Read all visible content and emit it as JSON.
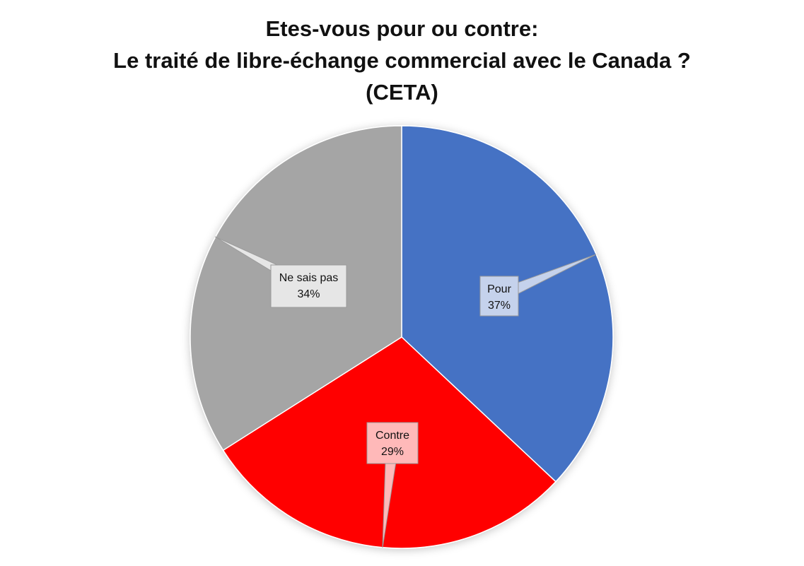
{
  "chart_data": {
    "type": "pie",
    "title": [
      "Etes-vous pour ou contre:",
      "Le traité de libre-échange commercial avec le Canada ?",
      "(CETA)"
    ],
    "slices": [
      {
        "name": "Pour",
        "value": 37,
        "value_label": "37%",
        "color": "#4472C4",
        "label_fill": "#C5D2EC"
      },
      {
        "name": "Contre",
        "value": 29,
        "value_label": "29%",
        "color": "#FF0000",
        "label_fill": "#FFB9B9"
      },
      {
        "name": "Ne sais pas",
        "value": 34,
        "value_label": "34%",
        "color": "#A5A5A5",
        "label_fill": "#E6E6E6"
      }
    ],
    "start_angle_deg": 0,
    "direction": "clockwise",
    "legend": "none"
  }
}
